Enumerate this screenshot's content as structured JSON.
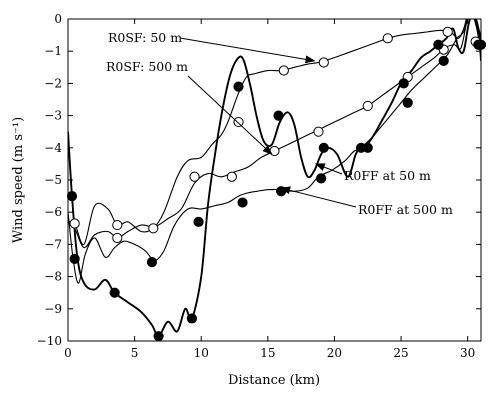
{
  "chart_data": {
    "type": "line",
    "title": "",
    "xlabel": "Distance (km)",
    "ylabel": "Wind speed (m s⁻¹)",
    "xlim": [
      0,
      31
    ],
    "ylim": [
      -10,
      0
    ],
    "xticks": [
      0,
      5,
      10,
      15,
      20,
      25,
      30
    ],
    "yticks": [
      -10,
      -9,
      -8,
      -7,
      -6,
      -5,
      -4,
      -3,
      -2,
      -1,
      0
    ],
    "grid": false,
    "legend": "none",
    "series": [
      {
        "name": "R0SF: 50 m",
        "marker": "open-circle",
        "line_width": 1.1,
        "x": [
          0,
          0.5,
          1.2,
          2,
          3,
          3.7,
          4.5,
          5.5,
          6.4,
          7.2,
          8.2,
          9,
          10,
          10.8,
          11.5,
          12,
          12.8,
          13.4,
          14,
          15,
          16,
          17,
          18,
          18.8,
          20,
          21,
          22,
          23,
          24,
          25,
          26,
          27,
          28,
          28.7,
          29.3,
          29.7,
          30,
          30.4,
          30.8,
          31
        ],
        "y": [
          -6.3,
          -6.35,
          -7.0,
          -5.8,
          -5.9,
          -6.4,
          -6.3,
          -6.6,
          -6.5,
          -6.0,
          -4.9,
          -4.4,
          -4.3,
          -3.9,
          -3.6,
          -3.2,
          -2.3,
          -1.8,
          -1.7,
          -1.6,
          -1.6,
          -1.5,
          -1.4,
          -1.35,
          -1.2,
          -1.05,
          -0.9,
          -0.75,
          -0.6,
          -0.5,
          -0.45,
          -0.4,
          -0.35,
          -0.4,
          -0.6,
          -0.3,
          0.1,
          0.1,
          -0.5,
          -0.8
        ],
        "markers_x": [
          0.5,
          3.7,
          6.4,
          12.8,
          16.2,
          19.2,
          24,
          28.5,
          30.6
        ],
        "markers_y": [
          -6.35,
          -6.4,
          -6.5,
          -3.2,
          -1.6,
          -1.35,
          -0.6,
          -0.4,
          -0.7
        ]
      },
      {
        "name": "R0SF: 500 m",
        "marker": "open-circle",
        "line_width": 1.1,
        "x": [
          0,
          0.5,
          1.2,
          2,
          3,
          3.7,
          4.5,
          5.5,
          6.5,
          7.5,
          8.5,
          9.5,
          10.5,
          11.5,
          12.5,
          13.5,
          14.5,
          15.5,
          16.5,
          17.5,
          18.5,
          19.5,
          20.5,
          21.5,
          22.5,
          23.5,
          24.5,
          25.5,
          26.5,
          27.5,
          28.3,
          29,
          29.5,
          30,
          30.5,
          30.9,
          31
        ],
        "y": [
          -6.3,
          -6.5,
          -7.1,
          -6.7,
          -6.6,
          -6.8,
          -6.6,
          -6.4,
          -6.45,
          -6.2,
          -5.9,
          -5.1,
          -4.8,
          -4.9,
          -4.75,
          -4.6,
          -4.3,
          -4.1,
          -3.9,
          -3.7,
          -3.5,
          -3.3,
          -3.1,
          -2.9,
          -2.7,
          -2.4,
          -2.1,
          -1.8,
          -1.5,
          -1.2,
          -0.9,
          -0.8,
          -0.9,
          0.0,
          0.15,
          -0.4,
          -0.6
        ],
        "markers_x": [
          3.7,
          9.5,
          12.3,
          15.5,
          18.8,
          22.5,
          25.5,
          28.2
        ],
        "markers_y": [
          -6.8,
          -4.9,
          -4.9,
          -4.1,
          -3.5,
          -2.7,
          -1.8,
          -0.95
        ]
      },
      {
        "name": "R0FF at 50 m",
        "marker": "filled-circle",
        "line_width": 1.9,
        "x": [
          0,
          0.3,
          0.7,
          1.2,
          2,
          2.8,
          3.5,
          4.5,
          5.5,
          6.3,
          6.8,
          7.5,
          8.2,
          8.8,
          9.3,
          10.0,
          10.5,
          11,
          11.6,
          12.2,
          12.8,
          13.2,
          13.7,
          14.2,
          14.7,
          15.3,
          15.9,
          16.5,
          17,
          17.5,
          18,
          18.5,
          19,
          19.5,
          20.2,
          21,
          21.6,
          22,
          22.8,
          23.5,
          24.3,
          25,
          25.8,
          26.5,
          27.2,
          27.8,
          28.4,
          28.9,
          29.3,
          29.7,
          30.1,
          30.5,
          30.9,
          31
        ],
        "y": [
          -3.5,
          -5.5,
          -7.4,
          -8.2,
          -8.4,
          -8.1,
          -8.5,
          -8.8,
          -9.1,
          -9.5,
          -9.85,
          -9.4,
          -9.7,
          -9.0,
          -9.3,
          -8.0,
          -5.8,
          -4.3,
          -2.8,
          -1.7,
          -1.2,
          -1.3,
          -2.1,
          -3.1,
          -3.8,
          -3.9,
          -3.2,
          -2.9,
          -3.3,
          -4.3,
          -4.9,
          -4.7,
          -4.2,
          -4.0,
          -4.2,
          -4.9,
          -4.2,
          -4.0,
          -3.7,
          -3.2,
          -2.6,
          -2.0,
          -1.6,
          -1.2,
          -1.0,
          -0.8,
          -0.6,
          -0.3,
          -0.9,
          -1.0,
          -0.1,
          0.2,
          -0.8,
          -1.3
        ],
        "markers_x": [
          0.3,
          3.5,
          6.8,
          9.3,
          12.8,
          15.8,
          19.2,
          22,
          25.2,
          27.8,
          30.8
        ],
        "markers_y": [
          -5.5,
          -8.5,
          -9.85,
          -9.3,
          -2.1,
          -3.0,
          -4.0,
          -4.0,
          -2.0,
          -0.8,
          -0.8
        ]
      },
      {
        "name": "R0FF at 500 m",
        "marker": "filled-circle",
        "line_width": 1.1,
        "x": [
          0,
          0.4,
          0.8,
          1.3,
          2,
          2.8,
          3.5,
          4.2,
          5,
          5.8,
          6.5,
          7.2,
          8,
          9,
          10,
          11,
          12,
          12.8,
          13.5,
          14.2,
          15,
          16,
          17,
          18,
          18.8,
          19.8,
          20.8,
          21.5,
          22.3,
          23,
          23.8,
          24.8,
          25.8,
          26.8,
          27.8,
          28.5,
          29.2,
          29.7,
          30.1,
          30.5,
          30.9,
          31
        ],
        "y": [
          -6.0,
          -7.5,
          -8.2,
          -7.3,
          -6.8,
          -7.4,
          -7.1,
          -6.9,
          -7.0,
          -7.2,
          -7.5,
          -7.2,
          -6.4,
          -5.9,
          -5.9,
          -5.8,
          -5.7,
          -5.5,
          -5.4,
          -5.35,
          -5.3,
          -5.3,
          -5.35,
          -5.25,
          -4.9,
          -4.7,
          -4.4,
          -4.1,
          -4.0,
          -3.6,
          -3.2,
          -2.7,
          -2.2,
          -1.8,
          -1.4,
          -1.1,
          -0.6,
          -0.4,
          0.15,
          0.0,
          -0.5,
          -0.8
        ],
        "markers_x": [
          0.5,
          6.3,
          9.8,
          13.1,
          16,
          19,
          22.5,
          25.5,
          28.2,
          31
        ],
        "markers_y": [
          -7.45,
          -7.55,
          -6.3,
          -5.7,
          -5.35,
          -4.95,
          -4.0,
          -2.6,
          -1.3,
          -0.8
        ]
      }
    ],
    "annotations": [
      {
        "text": "R0SF: 50 m",
        "target_series": 0,
        "arrow_to": [
          18.5,
          -1.3
        ]
      },
      {
        "text": "R0SF: 500 m",
        "target_series": 1,
        "arrow_to": [
          15.3,
          -4.2
        ]
      },
      {
        "text": "R0FF at 50 m",
        "target_series": 2,
        "arrow_to": [
          18.6,
          -4.5
        ]
      },
      {
        "text": "R0FF at 500 m",
        "target_series": 3,
        "arrow_to": [
          16.0,
          -5.25
        ]
      }
    ]
  }
}
